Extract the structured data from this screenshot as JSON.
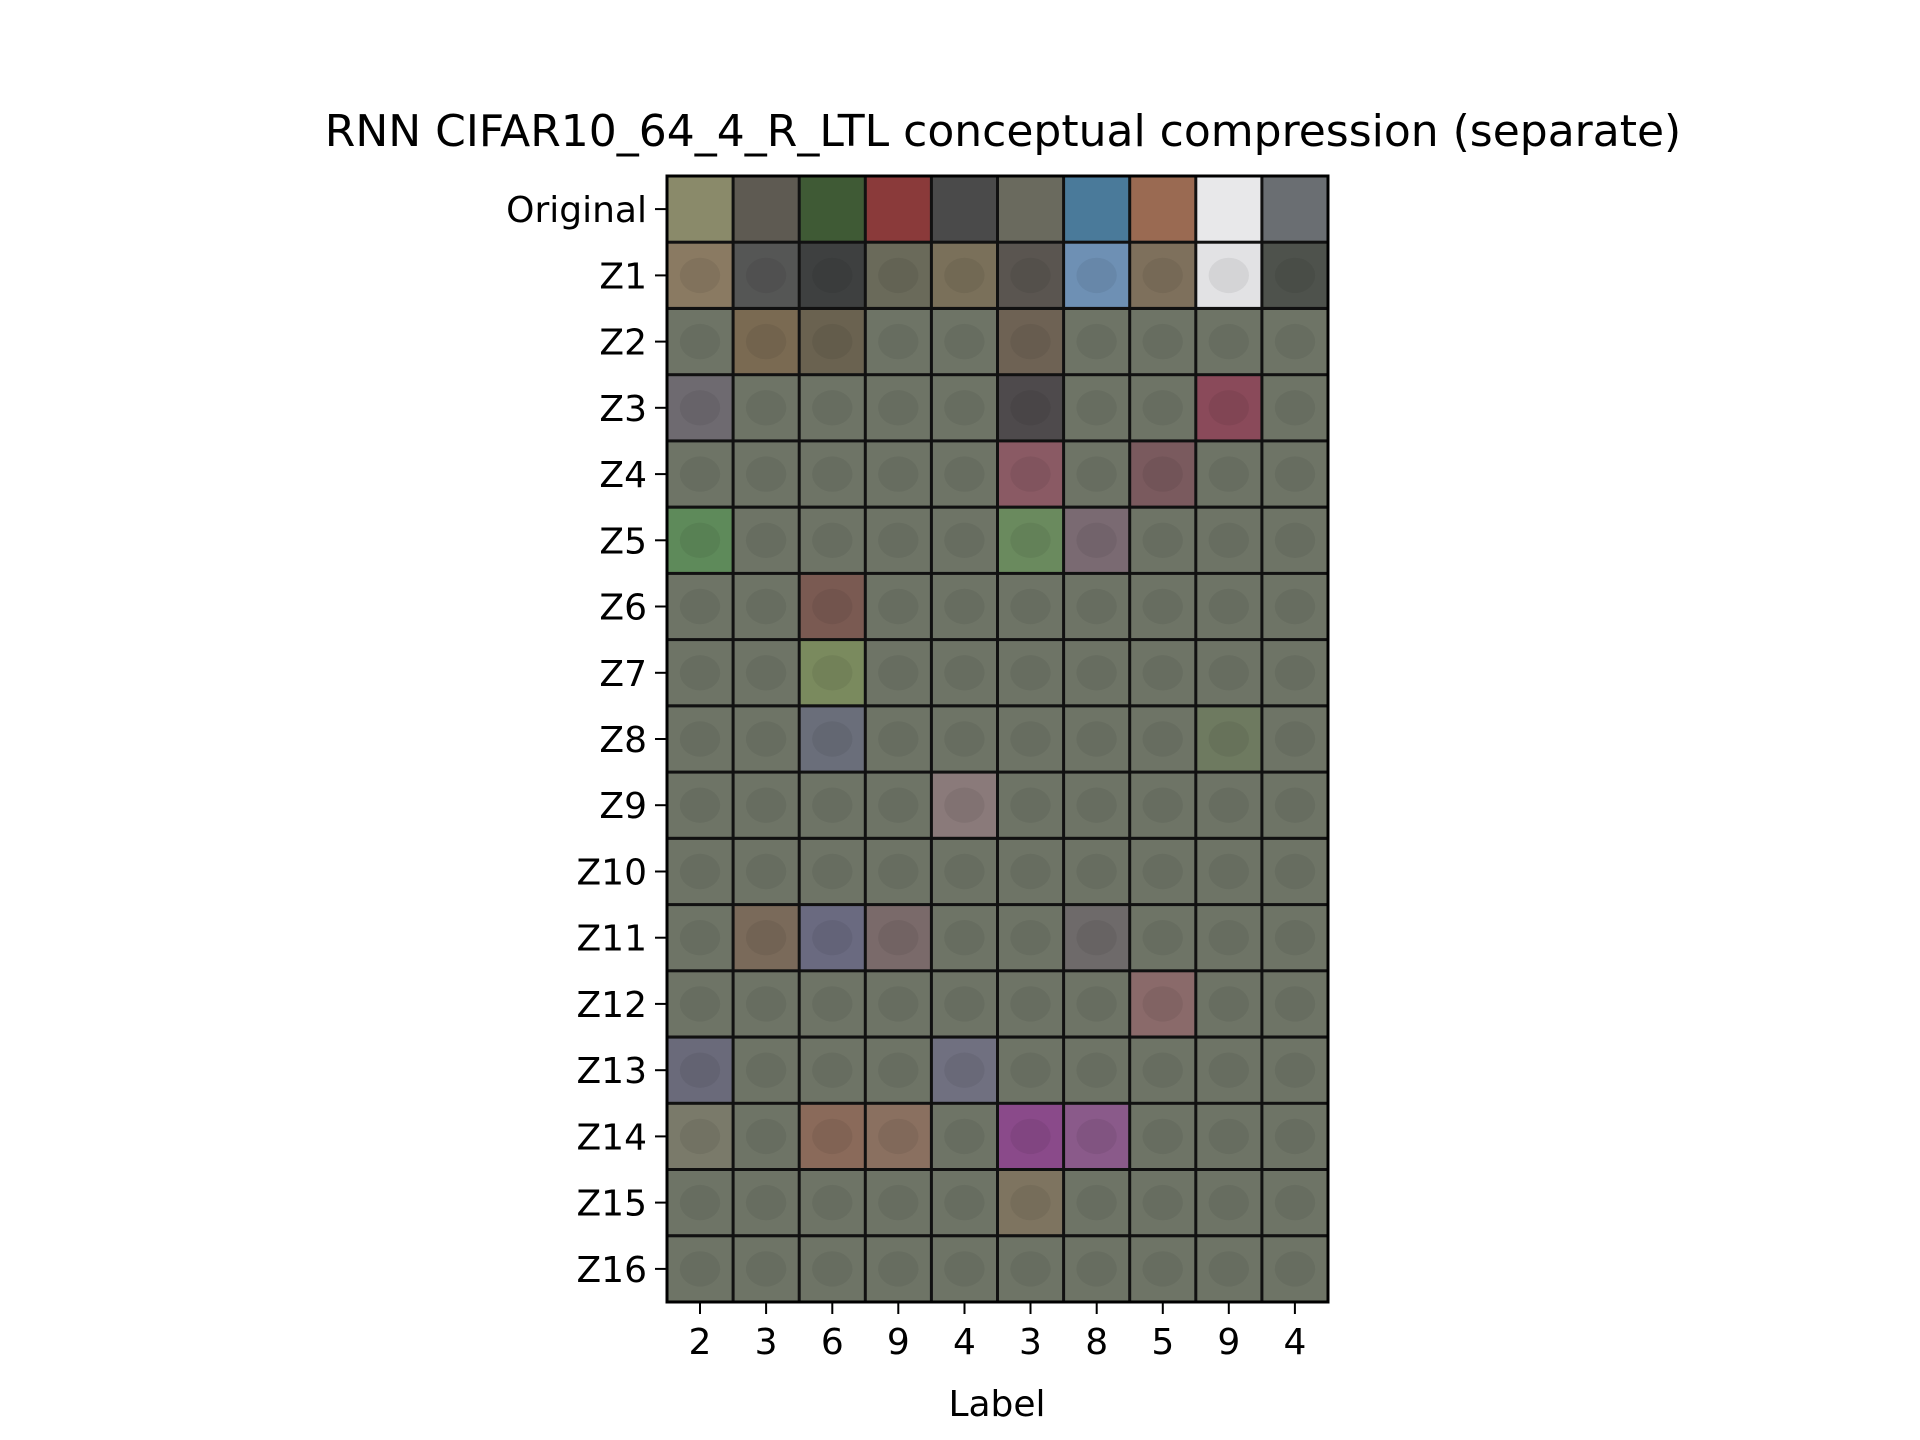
{
  "chart_data": {
    "type": "heatmap",
    "title": "RNN CIFAR10_64_4_R_LTL conceptual compression (separate)",
    "xlabel": "Label",
    "ylabel": "",
    "x_tick_labels": [
      "2",
      "3",
      "6",
      "9",
      "4",
      "3",
      "8",
      "5",
      "9",
      "4"
    ],
    "y_tick_labels": [
      "Original",
      "Z1",
      "Z2",
      "Z3",
      "Z4",
      "Z5",
      "Z6",
      "Z7",
      "Z8",
      "Z9",
      "Z10",
      "Z11",
      "Z12",
      "Z13",
      "Z14",
      "Z15",
      "Z16"
    ],
    "grid": false,
    "cell_border_color": "#111111",
    "original_row_colors": [
      "#8a8a6a",
      "#5e5a52",
      "#3f5a35",
      "#8a3a3a",
      "#4a4a4a",
      "#6a6a5e",
      "#4a7a9a",
      "#9a6a52",
      "#e8e8ea",
      "#6a6e72"
    ],
    "z1_row_colors": [
      "#8a7a62",
      "#555655",
      "#3e4040",
      "#6a6a5a",
      "#7a705a",
      "#5a5550",
      "#6e90b4",
      "#7e705c",
      "#e2e2e4",
      "#4e524c"
    ],
    "base_reconstruction_color": "#6e7466",
    "highlighted_cells": [
      {
        "row": "Z2",
        "label_index": 1,
        "color": "#7a6a52"
      },
      {
        "row": "Z2",
        "label_index": 2,
        "color": "#6a6250"
      },
      {
        "row": "Z2",
        "label_index": 5,
        "color": "#6e6254"
      },
      {
        "row": "Z3",
        "label_index": 0,
        "color": "#6e6a70"
      },
      {
        "row": "Z3",
        "label_index": 5,
        "color": "#4e4a4c"
      },
      {
        "row": "Z3",
        "label_index": 8,
        "color": "#8a4a5a"
      },
      {
        "row": "Z4",
        "label_index": 5,
        "color": "#8a5a64"
      },
      {
        "row": "Z4",
        "label_index": 7,
        "color": "#7a5a5e"
      },
      {
        "row": "Z5",
        "label_index": 0,
        "color": "#5e8a5a"
      },
      {
        "row": "Z5",
        "label_index": 5,
        "color": "#6a8a5e"
      },
      {
        "row": "Z5",
        "label_index": 6,
        "color": "#7a6a72"
      },
      {
        "row": "Z6",
        "label_index": 2,
        "color": "#7a5a52"
      },
      {
        "row": "Z7",
        "label_index": 2,
        "color": "#7a8a5e"
      },
      {
        "row": "Z8",
        "label_index": 2,
        "color": "#6a6e7a"
      },
      {
        "row": "Z8",
        "label_index": 8,
        "color": "#6e7a60"
      },
      {
        "row": "Z9",
        "label_index": 4,
        "color": "#8a7a7a"
      },
      {
        "row": "Z11",
        "label_index": 1,
        "color": "#7a6a5a"
      },
      {
        "row": "Z11",
        "label_index": 2,
        "color": "#6a6a80"
      },
      {
        "row": "Z11",
        "label_index": 3,
        "color": "#7a6a6a"
      },
      {
        "row": "Z11",
        "label_index": 6,
        "color": "#6e6a6a"
      },
      {
        "row": "Z12",
        "label_index": 7,
        "color": "#8a6a6a"
      },
      {
        "row": "Z13",
        "label_index": 0,
        "color": "#6a6a7a"
      },
      {
        "row": "Z13",
        "label_index": 4,
        "color": "#707080"
      },
      {
        "row": "Z14",
        "label_index": 0,
        "color": "#7a7a6a"
      },
      {
        "row": "Z14",
        "label_index": 2,
        "color": "#8a6a5a"
      },
      {
        "row": "Z14",
        "label_index": 3,
        "color": "#8a7060"
      },
      {
        "row": "Z14",
        "label_index": 5,
        "color": "#8a4a8a"
      },
      {
        "row": "Z14",
        "label_index": 6,
        "color": "#8a5a8a"
      },
      {
        "row": "Z15",
        "label_index": 5,
        "color": "#7e7460"
      }
    ]
  }
}
